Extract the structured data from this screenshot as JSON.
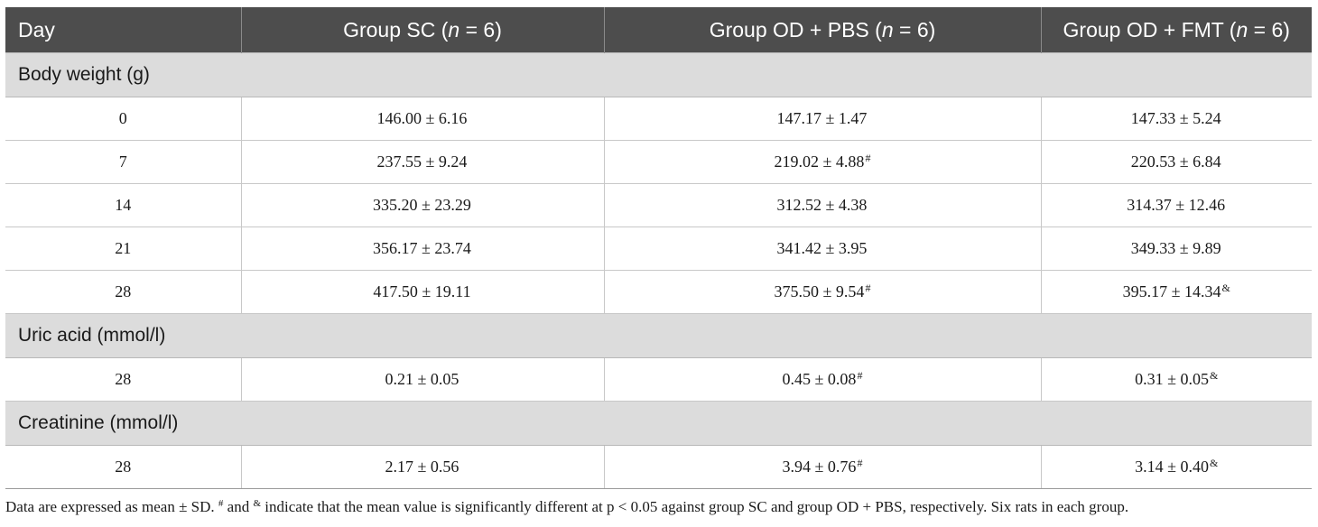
{
  "table": {
    "headers": {
      "day": "Day",
      "sc": {
        "prefix": "Group SC (",
        "n": "n",
        "suffix": " = 6)"
      },
      "pbs": {
        "prefix": "Group OD + PBS (",
        "n": "n",
        "suffix": " = 6)"
      },
      "fmt": {
        "prefix": "Group OD + FMT (",
        "n": "n",
        "suffix": " = 6)"
      }
    },
    "sections": [
      {
        "title": "Body weight (g)",
        "rows": [
          {
            "day": "0",
            "sc": "146.00 ± 6.16",
            "sc_mark": "",
            "pbs": "147.17 ± 1.47",
            "pbs_mark": "",
            "fmt": "147.33 ± 5.24",
            "fmt_mark": ""
          },
          {
            "day": "7",
            "sc": "237.55 ± 9.24",
            "sc_mark": "",
            "pbs": "219.02 ± 4.88",
            "pbs_mark": "#",
            "fmt": "220.53 ± 6.84",
            "fmt_mark": ""
          },
          {
            "day": "14",
            "sc": "335.20 ± 23.29",
            "sc_mark": "",
            "pbs": "312.52 ± 4.38",
            "pbs_mark": "",
            "fmt": "314.37 ± 12.46",
            "fmt_mark": ""
          },
          {
            "day": "21",
            "sc": "356.17 ± 23.74",
            "sc_mark": "",
            "pbs": "341.42 ± 3.95",
            "pbs_mark": "",
            "fmt": "349.33 ± 9.89",
            "fmt_mark": ""
          },
          {
            "day": "28",
            "sc": "417.50 ± 19.11",
            "sc_mark": "",
            "pbs": "375.50 ± 9.54",
            "pbs_mark": "#",
            "fmt": "395.17 ± 14.34",
            "fmt_mark": "&"
          }
        ]
      },
      {
        "title": "Uric acid (mmol/l)",
        "rows": [
          {
            "day": "28",
            "sc": "0.21 ± 0.05",
            "sc_mark": "",
            "pbs": "0.45 ± 0.08",
            "pbs_mark": "#",
            "fmt": "0.31 ± 0.05",
            "fmt_mark": "&"
          }
        ]
      },
      {
        "title": "Creatinine (mmol/l)",
        "rows": [
          {
            "day": "28",
            "sc": "2.17 ± 0.56",
            "sc_mark": "",
            "pbs": "3.94 ± 0.76",
            "pbs_mark": "#",
            "fmt": "3.14 ± 0.40",
            "fmt_mark": "&"
          }
        ]
      }
    ]
  },
  "footnote": {
    "p1": "Data are expressed as mean ± SD. ",
    "m1": "#",
    "p2": " and ",
    "m2": "&",
    "p3": " indicate that the mean value is significantly different at p < 0.05 against group SC and group OD + PBS, respectively. Six rats in each group."
  }
}
